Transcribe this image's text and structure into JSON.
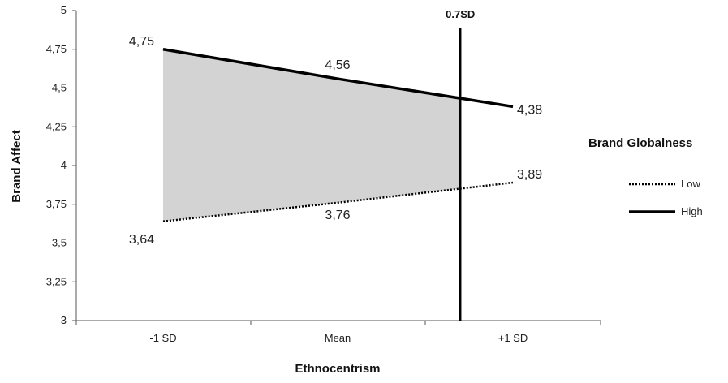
{
  "chart_data": {
    "type": "line",
    "xlabel": "Ethnocentrism",
    "ylabel": "Brand Affect",
    "categories": [
      "-1 SD",
      "Mean",
      "+1 SD"
    ],
    "ylim": [
      3,
      5
    ],
    "yticks": [
      "3",
      "3,25",
      "3,5",
      "3,75",
      "4",
      "4,25",
      "4,5",
      "4,75",
      "5"
    ],
    "grid": false,
    "legend": {
      "title": "Brand Globalness",
      "position": "right"
    },
    "series": [
      {
        "name": "Low",
        "style": "dotted",
        "values": [
          3.64,
          3.76,
          3.89
        ],
        "labels": [
          "3,64",
          "3,76",
          "3,89"
        ]
      },
      {
        "name": "High",
        "style": "solid",
        "values": [
          4.75,
          4.56,
          4.38
        ],
        "labels": [
          "4,75",
          "4,56",
          "4,38"
        ]
      }
    ],
    "reference_line": {
      "label": "0.7SD",
      "x_sd": 0.7
    },
    "shaded_region": {
      "color": "#d3d3d3"
    },
    "colors": {
      "line": "#000000",
      "shade": "#d3d3d3"
    }
  }
}
